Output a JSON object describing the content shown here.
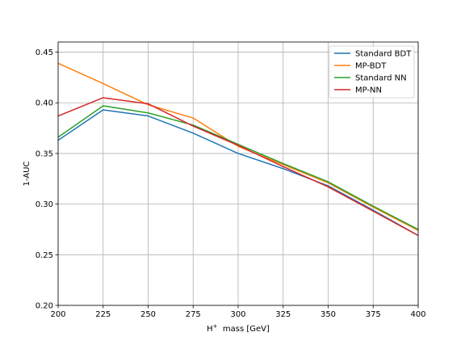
{
  "chart_data": {
    "type": "line",
    "title": "",
    "xlabel_main": "H",
    "xlabel_sup": "+",
    "xlabel_rest": "  mass [GeV]",
    "ylabel": "1-AUC",
    "xlim": [
      200,
      400
    ],
    "ylim": [
      0.2,
      0.46
    ],
    "grid": true,
    "legend_position": "top-right",
    "x": [
      200,
      225,
      250,
      275,
      300,
      325,
      350,
      375,
      400
    ],
    "x_tick_labels": [
      "200",
      "225",
      "250",
      "275",
      "300",
      "325",
      "350",
      "375",
      "400"
    ],
    "y_ticks": [
      0.2,
      0.25,
      0.3,
      0.35,
      0.4,
      0.45
    ],
    "y_tick_labels": [
      "0.20",
      "0.25",
      "0.30",
      "0.35",
      "0.40",
      "0.45"
    ],
    "series": [
      {
        "name": "Standard BDT",
        "color": "#1f77b4",
        "values": [
          0.363,
          0.393,
          0.387,
          0.37,
          0.35,
          0.335,
          0.318,
          0.294,
          0.269
        ]
      },
      {
        "name": "MP-BDT",
        "color": "#ff7f0e",
        "values": [
          0.439,
          0.419,
          0.398,
          0.385,
          0.357,
          0.339,
          0.321,
          0.297,
          0.274
        ]
      },
      {
        "name": "Standard NN",
        "color": "#2ca02c",
        "values": [
          0.366,
          0.397,
          0.39,
          0.378,
          0.359,
          0.34,
          0.322,
          0.298,
          0.275
        ]
      },
      {
        "name": "MP-NN",
        "color": "#d62728",
        "values": [
          0.387,
          0.405,
          0.399,
          0.377,
          0.358,
          0.337,
          0.317,
          0.293,
          0.269
        ]
      }
    ]
  }
}
